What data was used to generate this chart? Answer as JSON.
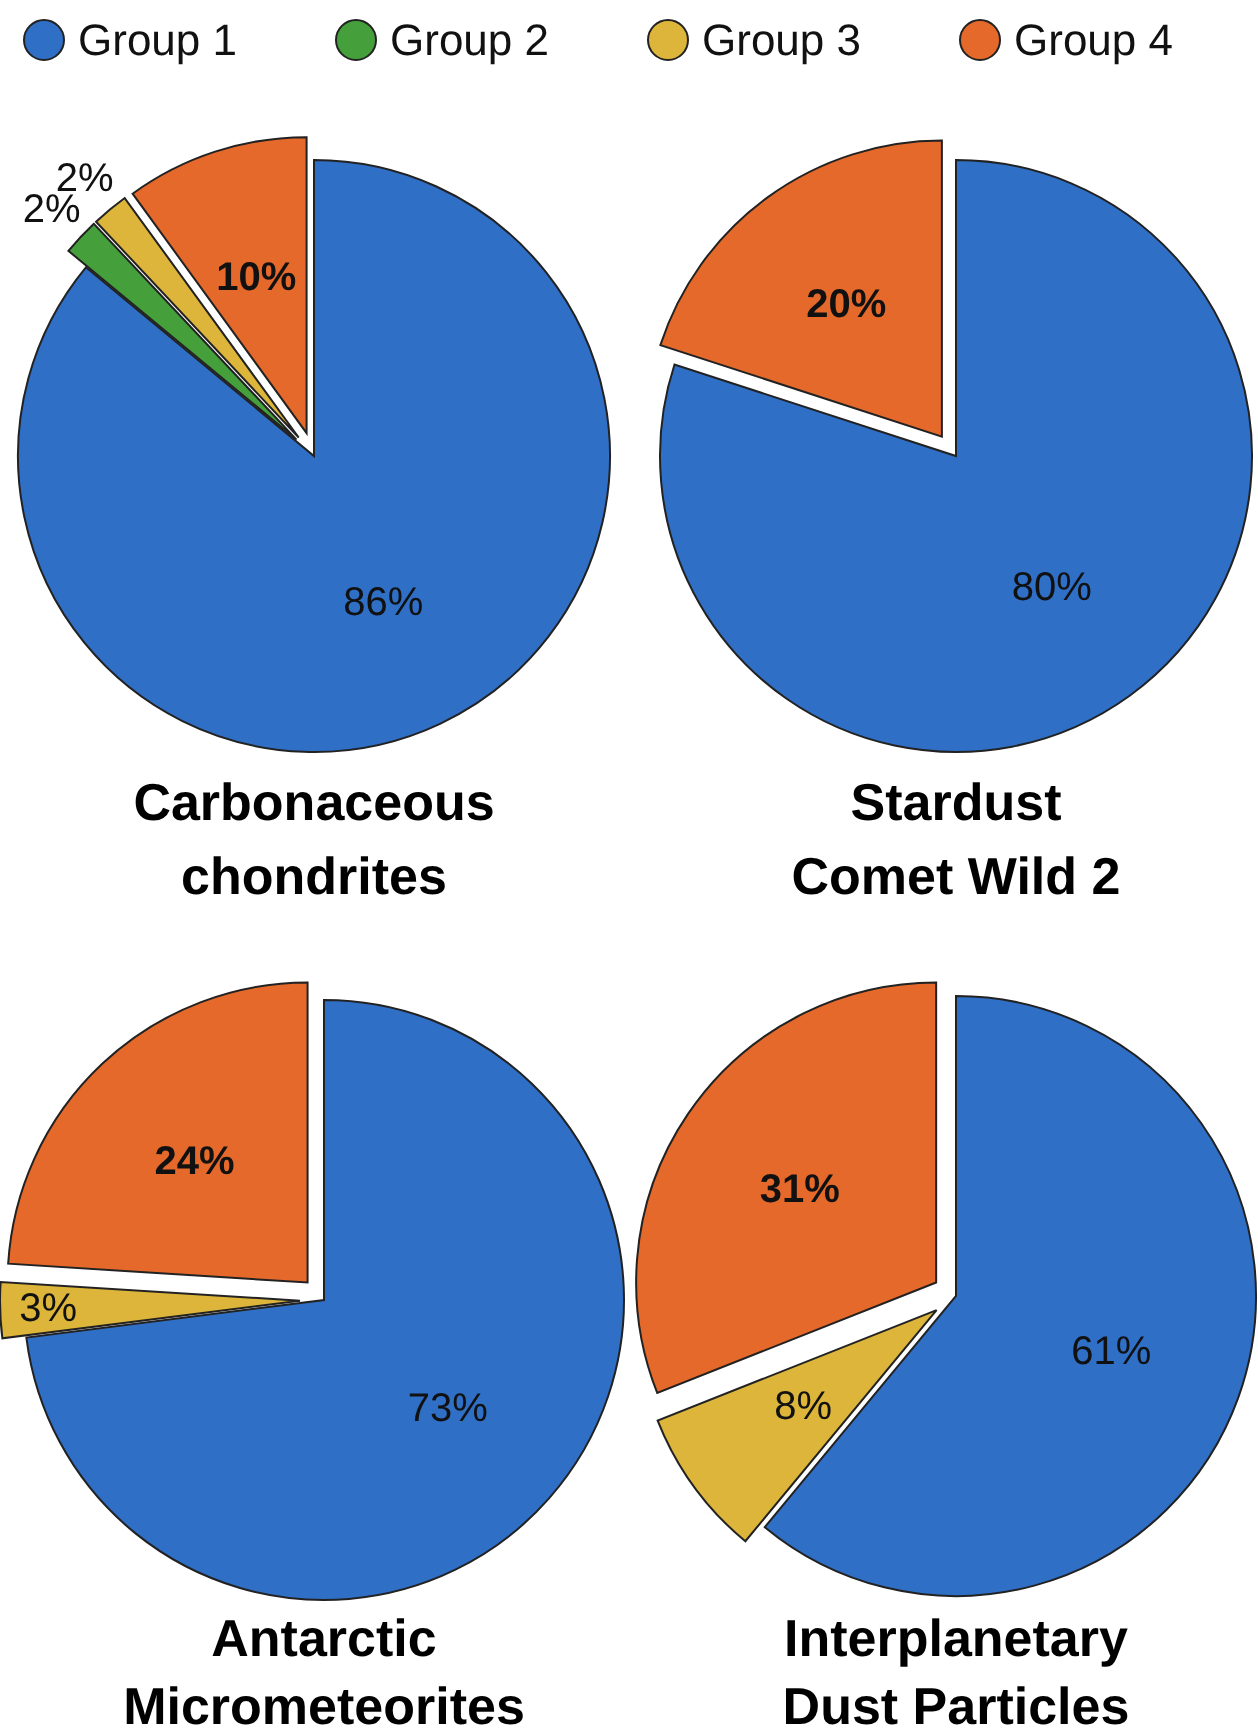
{
  "chart_data": [
    {
      "type": "pie",
      "title": "Carbonaceous chondrites",
      "categories": [
        "Group 1",
        "Group 2",
        "Group 3",
        "Group 4"
      ],
      "values": [
        86,
        2,
        2,
        10
      ],
      "value_labels": [
        "86%",
        "2%",
        "2%",
        "10%"
      ],
      "colors": [
        "#2f6fc6",
        "#45a03c",
        "#dcb53a",
        "#e4692a"
      ],
      "legend": "top"
    },
    {
      "type": "pie",
      "title": "Stardust Comet Wild 2",
      "categories": [
        null,
        null
      ],
      "values": [
        80,
        20
      ],
      "value_labels": [
        "80%",
        "20%"
      ],
      "colors": [
        "#2f6fc6",
        "#e4692a"
      ]
    },
    {
      "type": "pie",
      "title": "Antarctic Micrometeorites",
      "categories": [
        null,
        null,
        null
      ],
      "values": [
        73,
        3,
        24
      ],
      "value_labels": [
        "73%",
        "3%",
        "24%"
      ],
      "colors": [
        "#2f6fc6",
        "#dcb53a",
        "#e4692a"
      ]
    },
    {
      "type": "pie",
      "title": "Interplanetary Dust Particles",
      "categories": [
        null,
        null,
        null
      ],
      "values": [
        61,
        8,
        31
      ],
      "value_labels": [
        "61%",
        "8%",
        "31%"
      ],
      "colors": [
        "#2f6fc6",
        "#dcb53a",
        "#e4692a"
      ]
    }
  ]
}
